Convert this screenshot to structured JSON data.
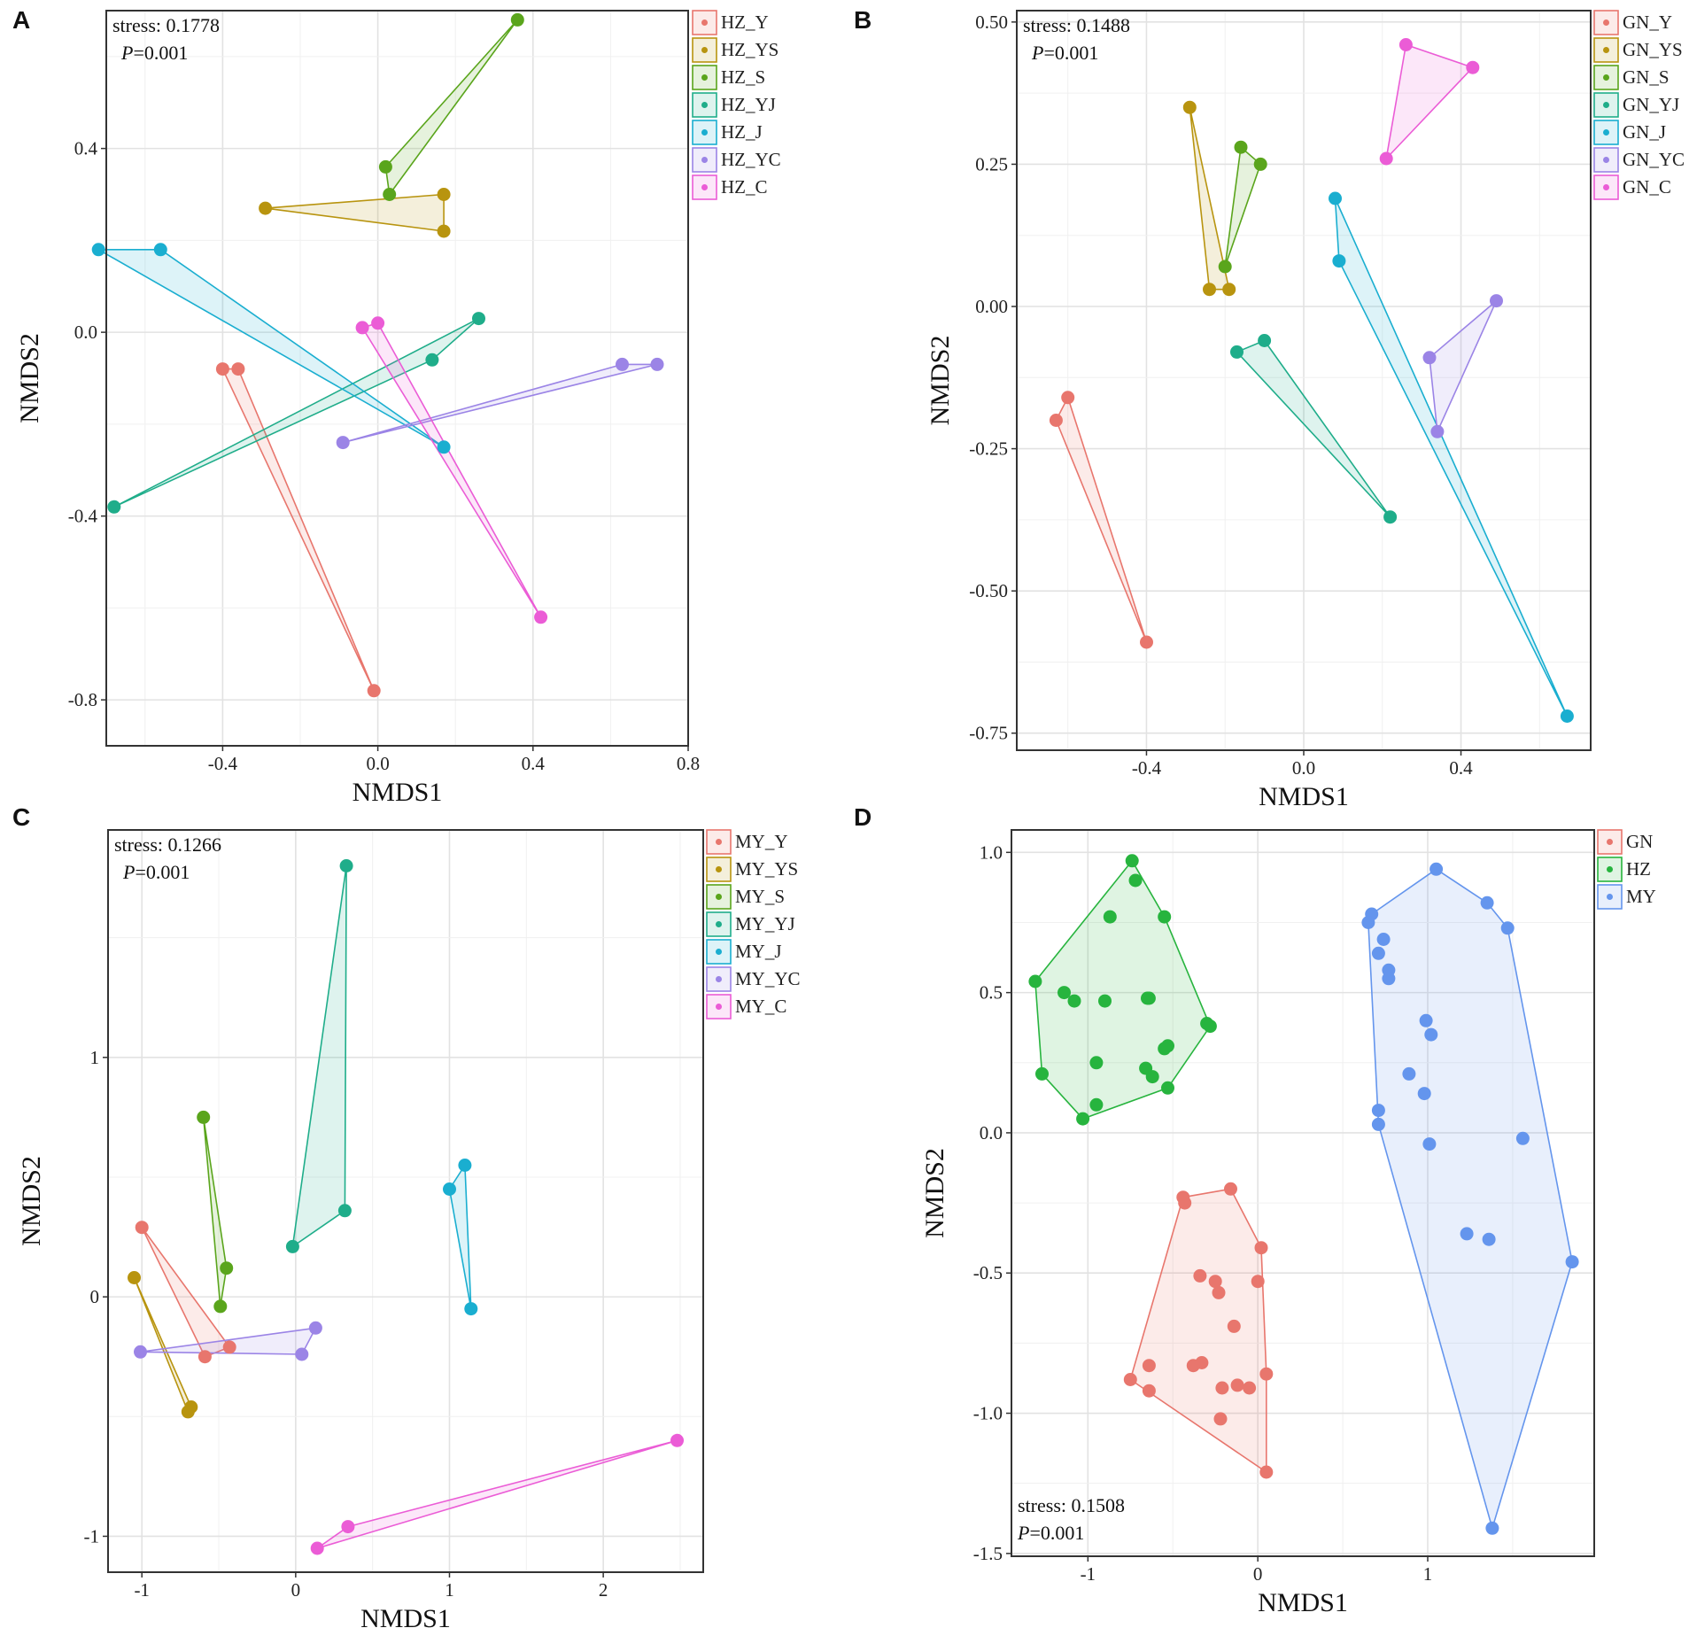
{
  "chart_data": [
    {
      "type": "scatter",
      "panel_label": "A",
      "title": "",
      "xlabel": "NMDS1",
      "ylabel": "NMDS2",
      "xlim": [
        -0.7,
        0.8
      ],
      "ylim": [
        -0.9,
        0.7
      ],
      "xticks": [
        -0.4,
        0.0,
        0.4,
        0.8
      ],
      "xtick_labels": [
        "-0.4",
        "0.0",
        "0.4",
        "0.8"
      ],
      "yticks": [
        -0.8,
        -0.4,
        0.0,
        0.4
      ],
      "ytick_labels": [
        "-0.8",
        "-0.4",
        "0.0",
        "0.4"
      ],
      "grid": true,
      "legend_position": "outside-right-top",
      "annotation": {
        "position": "top-left",
        "stress": "stress:  0.1778",
        "p_prefix": "P",
        "p_value": "=0.001"
      },
      "series": [
        {
          "name": "HZ_Y",
          "color": "#e8766d",
          "points": [
            [
              -0.4,
              -0.08
            ],
            [
              -0.36,
              -0.08
            ],
            [
              -0.01,
              -0.78
            ]
          ]
        },
        {
          "name": "HZ_YS",
          "color": "#b8940f",
          "points": [
            [
              -0.29,
              0.27
            ],
            [
              0.17,
              0.3
            ],
            [
              0.17,
              0.22
            ]
          ]
        },
        {
          "name": "HZ_S",
          "color": "#5aa51c",
          "points": [
            [
              0.36,
              0.68
            ],
            [
              0.02,
              0.36
            ],
            [
              0.03,
              0.3
            ]
          ]
        },
        {
          "name": "HZ_YJ",
          "color": "#1fad8a",
          "points": [
            [
              0.26,
              0.03
            ],
            [
              0.14,
              -0.06
            ],
            [
              -0.68,
              -0.38
            ]
          ]
        },
        {
          "name": "HZ_J",
          "color": "#1aaed0",
          "points": [
            [
              -0.72,
              0.18
            ],
            [
              -0.56,
              0.18
            ],
            [
              0.17,
              -0.25
            ]
          ]
        },
        {
          "name": "HZ_YC",
          "color": "#9b84e6",
          "points": [
            [
              0.63,
              -0.07
            ],
            [
              0.72,
              -0.07
            ],
            [
              -0.09,
              -0.24
            ]
          ]
        },
        {
          "name": "HZ_C",
          "color": "#eb5cd6",
          "points": [
            [
              -0.04,
              0.01
            ],
            [
              0.0,
              0.02
            ],
            [
              0.42,
              -0.62
            ]
          ]
        }
      ]
    },
    {
      "type": "scatter",
      "panel_label": "B",
      "title": "",
      "xlabel": "NMDS1",
      "ylabel": "NMDS2",
      "xlim": [
        -0.73,
        0.73
      ],
      "ylim": [
        -0.78,
        0.52
      ],
      "xticks": [
        -0.4,
        0.0,
        0.4
      ],
      "xtick_labels": [
        "-0.4",
        "0.0",
        "0.4"
      ],
      "yticks": [
        -0.75,
        -0.5,
        -0.25,
        0.0,
        0.25,
        0.5
      ],
      "ytick_labels": [
        "-0.75",
        "-0.50",
        "-0.25",
        "0.00",
        "0.25",
        "0.50"
      ],
      "grid": true,
      "legend_position": "outside-right-top",
      "annotation": {
        "position": "top-left",
        "stress": "stress:  0.1488",
        "p_prefix": "P",
        "p_value": "=0.001"
      },
      "series": [
        {
          "name": "GN_Y",
          "color": "#e8766d",
          "points": [
            [
              -0.63,
              -0.2
            ],
            [
              -0.6,
              -0.16
            ],
            [
              -0.4,
              -0.59
            ]
          ]
        },
        {
          "name": "GN_YS",
          "color": "#b8940f",
          "points": [
            [
              -0.29,
              0.35
            ],
            [
              -0.24,
              0.03
            ],
            [
              -0.19,
              0.03
            ]
          ]
        },
        {
          "name": "GN_S",
          "color": "#5aa51c",
          "points": [
            [
              -0.16,
              0.28
            ],
            [
              -0.11,
              0.25
            ],
            [
              -0.2,
              0.07
            ]
          ]
        },
        {
          "name": "GN_YJ",
          "color": "#1fad8a",
          "points": [
            [
              -0.17,
              -0.08
            ],
            [
              -0.1,
              -0.06
            ],
            [
              0.22,
              -0.37
            ]
          ]
        },
        {
          "name": "GN_J",
          "color": "#1aaed0",
          "points": [
            [
              0.08,
              0.19
            ],
            [
              0.09,
              0.08
            ],
            [
              0.67,
              -0.72
            ]
          ]
        },
        {
          "name": "GN_YC",
          "color": "#9b84e6",
          "points": [
            [
              0.32,
              -0.09
            ],
            [
              0.49,
              0.01
            ],
            [
              0.34,
              -0.22
            ]
          ]
        },
        {
          "name": "GN_C",
          "color": "#eb5cd6",
          "points": [
            [
              0.26,
              0.46
            ],
            [
              0.43,
              0.42
            ],
            [
              0.21,
              0.26
            ]
          ]
        }
      ]
    },
    {
      "type": "scatter",
      "panel_label": "C",
      "title": "",
      "xlabel": "NMDS1",
      "ylabel": "NMDS2",
      "xlim": [
        -1.22,
        2.65
      ],
      "ylim": [
        -1.15,
        1.95
      ],
      "xticks": [
        -1,
        0,
        1,
        2
      ],
      "xtick_labels": [
        "-1",
        "0",
        "1",
        "2"
      ],
      "yticks": [
        -1,
        0,
        1
      ],
      "ytick_labels": [
        "-1",
        "0",
        "1"
      ],
      "grid": true,
      "legend_position": "outside-right-top",
      "annotation": {
        "position": "top-left",
        "stress": "stress:  0.1266",
        "p_prefix": "P",
        "p_value": "=0.001"
      },
      "series": [
        {
          "name": "MY_Y",
          "color": "#e8766d",
          "points": [
            [
              -1.0,
              0.29
            ],
            [
              -0.59,
              -0.25
            ],
            [
              -0.43,
              -0.21
            ]
          ]
        },
        {
          "name": "MY_YS",
          "color": "#b8940f",
          "points": [
            [
              -1.05,
              0.08
            ],
            [
              -0.68,
              -0.46
            ],
            [
              -0.7,
              -0.48
            ]
          ]
        },
        {
          "name": "MY_S",
          "color": "#5aa51c",
          "points": [
            [
              -0.6,
              0.75
            ],
            [
              -0.45,
              0.12
            ],
            [
              -0.49,
              -0.04
            ]
          ]
        },
        {
          "name": "MY_YJ",
          "color": "#1fad8a",
          "points": [
            [
              0.33,
              1.8
            ],
            [
              0.32,
              0.36
            ],
            [
              -0.02,
              0.21
            ]
          ]
        },
        {
          "name": "MY_J",
          "color": "#1aaed0",
          "points": [
            [
              1.1,
              0.55
            ],
            [
              1.0,
              0.45
            ],
            [
              1.14,
              -0.05
            ]
          ]
        },
        {
          "name": "MY_YC",
          "color": "#9b84e6",
          "points": [
            [
              -1.01,
              -0.23
            ],
            [
              0.13,
              -0.13
            ],
            [
              0.04,
              -0.24
            ]
          ]
        },
        {
          "name": "MY_C",
          "color": "#eb5cd6",
          "points": [
            [
              2.48,
              -0.6
            ],
            [
              0.34,
              -0.96
            ],
            [
              0.14,
              -1.05
            ]
          ]
        }
      ]
    },
    {
      "type": "scatter",
      "panel_label": "D",
      "title": "",
      "xlabel": "NMDS1",
      "ylabel": "NMDS2",
      "xlim": [
        -1.45,
        1.98
      ],
      "ylim": [
        -1.51,
        1.08
      ],
      "xticks": [
        -1,
        0,
        1
      ],
      "xtick_labels": [
        "-1",
        "0",
        "1"
      ],
      "yticks": [
        -1.5,
        -1.0,
        -0.5,
        0.0,
        0.5,
        1.0
      ],
      "ytick_labels": [
        "-1.5",
        "-1.0",
        "-0.5",
        "0.0",
        "0.5",
        "1.0"
      ],
      "grid": true,
      "legend_position": "outside-right-top",
      "annotation": {
        "position": "bottom-left",
        "stress": "stress:  0.1508",
        "p_prefix": "P",
        "p_value": "=0.001"
      },
      "series": [
        {
          "name": "GN",
          "color": "#e8766d",
          "points": [
            [
              -0.44,
              -0.23
            ],
            [
              -0.43,
              -0.25
            ],
            [
              -0.16,
              -0.2
            ],
            [
              0.02,
              -0.41
            ],
            [
              0.0,
              -0.53
            ],
            [
              -0.34,
              -0.51
            ],
            [
              -0.25,
              -0.53
            ],
            [
              -0.23,
              -0.57
            ],
            [
              -0.14,
              -0.69
            ],
            [
              0.05,
              -0.86
            ],
            [
              -0.12,
              -0.9
            ],
            [
              -0.05,
              -0.91
            ],
            [
              -0.21,
              -0.91
            ],
            [
              -0.33,
              -0.82
            ],
            [
              -0.38,
              -0.83
            ],
            [
              -0.64,
              -0.83
            ],
            [
              -0.75,
              -0.88
            ],
            [
              -0.64,
              -0.92
            ],
            [
              -0.22,
              -1.02
            ],
            [
              0.05,
              -1.21
            ]
          ]
        },
        {
          "name": "HZ",
          "color": "#27b43e",
          "points": [
            [
              -0.74,
              0.97
            ],
            [
              -0.72,
              0.9
            ],
            [
              -0.55,
              0.77
            ],
            [
              -0.87,
              0.77
            ],
            [
              -1.31,
              0.54
            ],
            [
              -1.14,
              0.5
            ],
            [
              -1.08,
              0.47
            ],
            [
              -0.9,
              0.47
            ],
            [
              -0.64,
              0.48
            ],
            [
              -0.65,
              0.48
            ],
            [
              -0.3,
              0.39
            ],
            [
              -0.28,
              0.38
            ],
            [
              -0.53,
              0.31
            ],
            [
              -0.55,
              0.3
            ],
            [
              -0.95,
              0.25
            ],
            [
              -1.27,
              0.21
            ],
            [
              -0.66,
              0.23
            ],
            [
              -0.62,
              0.2
            ],
            [
              -0.53,
              0.16
            ],
            [
              -0.95,
              0.1
            ],
            [
              -1.03,
              0.05
            ]
          ]
        },
        {
          "name": "MY",
          "color": "#6495ed",
          "points": [
            [
              1.05,
              0.94
            ],
            [
              1.35,
              0.82
            ],
            [
              1.47,
              0.73
            ],
            [
              0.67,
              0.78
            ],
            [
              0.65,
              0.75
            ],
            [
              0.74,
              0.69
            ],
            [
              0.71,
              0.64
            ],
            [
              0.77,
              0.58
            ],
            [
              0.77,
              0.55
            ],
            [
              0.99,
              0.4
            ],
            [
              1.02,
              0.35
            ],
            [
              0.89,
              0.21
            ],
            [
              0.98,
              0.14
            ],
            [
              0.71,
              0.08
            ],
            [
              0.71,
              0.03
            ],
            [
              1.56,
              -0.02
            ],
            [
              1.01,
              -0.04
            ],
            [
              1.23,
              -0.36
            ],
            [
              1.36,
              -0.38
            ],
            [
              1.85,
              -0.46
            ],
            [
              1.38,
              -1.41
            ]
          ]
        }
      ]
    }
  ]
}
